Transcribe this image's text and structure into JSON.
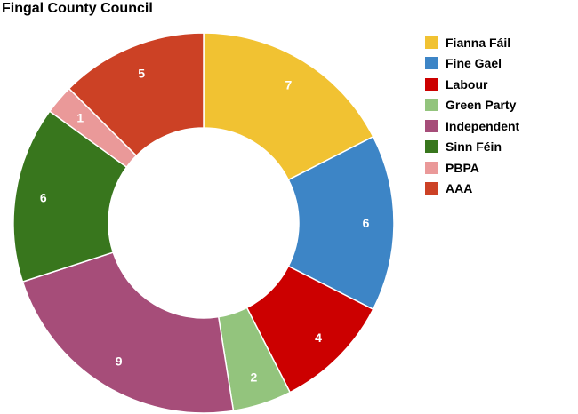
{
  "chart_data": {
    "type": "pie",
    "variant": "donut",
    "title": "Fingal County Council",
    "legend_position": "right",
    "categories": [
      "Fianna Fáil",
      "Fine Gael",
      "Labour",
      "Green Party",
      "Independent",
      "Sinn Féin",
      "PBPA",
      "AAA"
    ],
    "values": [
      7,
      6,
      4,
      2,
      9,
      6,
      1,
      5
    ],
    "colors": [
      "#f1c232",
      "#3d85c6",
      "#cc0000",
      "#93c47d",
      "#a64d79",
      "#38761d",
      "#ea9999",
      "#cc4125"
    ],
    "data_labels": [
      "7",
      "6",
      "4",
      "2",
      "9",
      "6",
      "1",
      "5"
    ]
  }
}
